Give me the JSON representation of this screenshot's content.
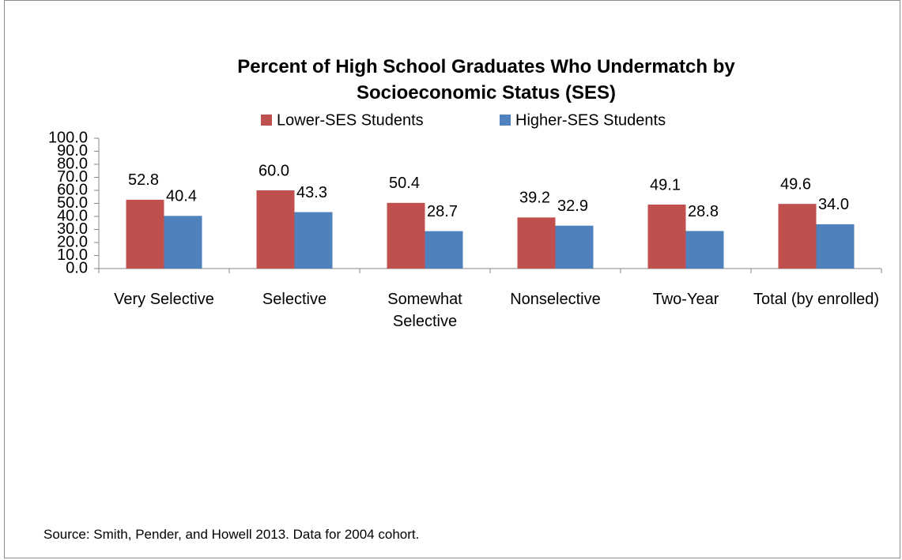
{
  "chart_data": {
    "type": "bar",
    "title": "Percent of High School Graduates Who Undermatch by Socioeconomic Status (SES)",
    "categories": [
      "Very Selective",
      "Selective",
      "Somewhat Selective",
      "Nonselective",
      "Two-Year",
      "Total (by enrolled)"
    ],
    "series": [
      {
        "name": "Lower-SES Students",
        "color": "#c0504d",
        "values": [
          52.8,
          60.0,
          50.4,
          39.2,
          49.1,
          49.6
        ],
        "value_labels": [
          "52.8",
          "60.0",
          "50.4",
          "39.2",
          "49.1",
          "49.6"
        ]
      },
      {
        "name": "Higher-SES Students",
        "color": "#4f81bd",
        "values": [
          40.4,
          43.3,
          28.7,
          32.9,
          28.8,
          34.0
        ],
        "value_labels": [
          "40.4",
          "43.3",
          "28.7",
          "32.9",
          "28.8",
          "34.0"
        ]
      }
    ],
    "ylim": [
      0,
      100
    ],
    "yticks": [
      {
        "value": 0,
        "label": "0.0"
      },
      {
        "value": 10,
        "label": "10.0"
      },
      {
        "value": 20,
        "label": "20.0"
      },
      {
        "value": 30,
        "label": "30.0"
      },
      {
        "value": 40,
        "label": "40.0"
      },
      {
        "value": 50,
        "label": "50.0"
      },
      {
        "value": 60,
        "label": "60.0"
      },
      {
        "value": 70,
        "label": "70.0"
      },
      {
        "value": 80,
        "label": "80.0"
      },
      {
        "value": 90,
        "label": "90.0"
      },
      {
        "value": 100,
        "label": "100.0"
      }
    ],
    "legend": "top",
    "note": "Source: Smith, Pender, and Howell 2013. Data for 2004 cohort."
  }
}
